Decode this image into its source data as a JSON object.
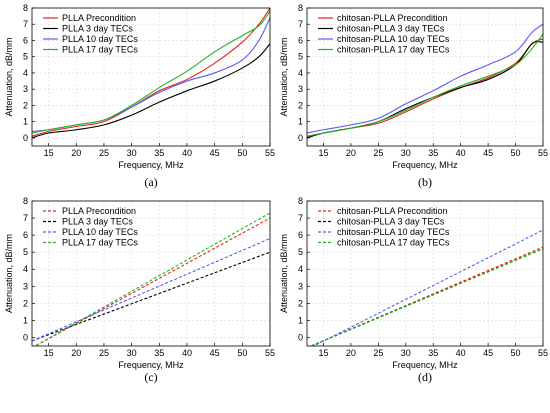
{
  "chart_data": [
    {
      "type": "line",
      "panel_label": "(a)",
      "xlabel": "Frequency, MHz",
      "ylabel": "Attenuation, dB/mm",
      "xlim": [
        12,
        55
      ],
      "ylim": [
        -0.5,
        8
      ],
      "x_ticks": [
        15,
        20,
        25,
        30,
        35,
        40,
        45,
        50,
        55
      ],
      "y_ticks": [
        0,
        1,
        2,
        3,
        4,
        5,
        6,
        7,
        8
      ],
      "grid": true,
      "legend": "top-left",
      "series": [
        {
          "name": "PLLA Precondition",
          "color": "#e8201e",
          "dash": false,
          "x": [
            12,
            15,
            20,
            25,
            30,
            35,
            40,
            45,
            50,
            53,
            55
          ],
          "y": [
            0.1,
            0.4,
            0.7,
            1.0,
            1.9,
            2.9,
            3.6,
            4.6,
            5.9,
            7.0,
            8.0
          ]
        },
        {
          "name": "PLLA 3 day TECs",
          "color": "#000000",
          "dash": false,
          "x": [
            12,
            15,
            20,
            25,
            30,
            35,
            40,
            45,
            50,
            53,
            55
          ],
          "y": [
            0.0,
            0.3,
            0.5,
            0.8,
            1.4,
            2.2,
            2.9,
            3.5,
            4.3,
            5.0,
            5.8
          ]
        },
        {
          "name": "PLLA 10 day TECs",
          "color": "#5b5bf5",
          "dash": false,
          "x": [
            12,
            15,
            20,
            25,
            30,
            35,
            40,
            45,
            50,
            53,
            55
          ],
          "y": [
            0.4,
            0.5,
            0.8,
            1.1,
            1.9,
            2.8,
            3.5,
            4.0,
            4.8,
            6.0,
            7.4
          ]
        },
        {
          "name": "PLLA 17 day TECs",
          "color": "#1eb81e",
          "dash": false,
          "x": [
            12,
            15,
            20,
            25,
            30,
            35,
            40,
            45,
            50,
            53,
            55
          ],
          "y": [
            0.3,
            0.5,
            0.8,
            1.1,
            2.0,
            3.1,
            4.1,
            5.3,
            6.3,
            6.9,
            7.8
          ]
        }
      ]
    },
    {
      "type": "line",
      "panel_label": "(b)",
      "xlabel": "Frequency, MHz",
      "ylabel": "Attenuation, dB/mm",
      "xlim": [
        12,
        55
      ],
      "ylim": [
        -0.5,
        8
      ],
      "x_ticks": [
        15,
        20,
        25,
        30,
        35,
        40,
        45,
        50,
        55
      ],
      "y_ticks": [
        0,
        1,
        2,
        3,
        4,
        5,
        6,
        7,
        8
      ],
      "grid": true,
      "legend": "top-left",
      "series": [
        {
          "name": "chitosan-PLLA Precondition",
          "color": "#e8201e",
          "dash": false,
          "x": [
            12,
            15,
            20,
            25,
            30,
            35,
            40,
            45,
            50,
            53,
            55
          ],
          "y": [
            0.1,
            0.3,
            0.6,
            0.9,
            1.6,
            2.4,
            3.1,
            3.7,
            4.6,
            5.8,
            6.1
          ]
        },
        {
          "name": "chitosan-PLLA 3 day TECs",
          "color": "#000000",
          "dash": false,
          "x": [
            12,
            15,
            20,
            25,
            30,
            35,
            40,
            45,
            50,
            53,
            55
          ],
          "y": [
            0.0,
            0.3,
            0.6,
            1.0,
            1.8,
            2.5,
            3.1,
            3.6,
            4.5,
            5.8,
            5.9
          ]
        },
        {
          "name": "chitosan-PLLA 10 day TECs",
          "color": "#5b5bf5",
          "dash": false,
          "x": [
            12,
            15,
            20,
            25,
            30,
            35,
            40,
            45,
            50,
            53,
            55
          ],
          "y": [
            0.3,
            0.5,
            0.8,
            1.2,
            2.1,
            2.9,
            3.8,
            4.5,
            5.3,
            6.5,
            7.0
          ]
        },
        {
          "name": "chitosan-PLLA 17 day TECs",
          "color": "#1eb81e",
          "dash": false,
          "x": [
            12,
            15,
            20,
            25,
            30,
            35,
            40,
            45,
            50,
            53,
            55
          ],
          "y": [
            0.1,
            0.3,
            0.6,
            1.0,
            1.7,
            2.5,
            3.2,
            3.8,
            4.5,
            5.5,
            6.4
          ]
        }
      ]
    },
    {
      "type": "line",
      "panel_label": "(c)",
      "xlabel": "Frequency, MHz",
      "ylabel": "Attenuation, dB/mm",
      "xlim": [
        12,
        55
      ],
      "ylim": [
        -0.5,
        8
      ],
      "x_ticks": [
        15,
        20,
        25,
        30,
        35,
        40,
        45,
        50,
        55
      ],
      "y_ticks": [
        0,
        1,
        2,
        3,
        4,
        5,
        6,
        7,
        8
      ],
      "grid": true,
      "legend": "top-left",
      "series": [
        {
          "name": "PLLA Precondition",
          "color": "#e8201e",
          "dash": true,
          "x": [
            12,
            55
          ],
          "y": [
            -0.6,
            7.0
          ]
        },
        {
          "name": "PLLA 3 day TECs",
          "color": "#000000",
          "dash": true,
          "x": [
            12,
            55
          ],
          "y": [
            -0.2,
            5.0
          ]
        },
        {
          "name": "PLLA 10 day TECs",
          "color": "#5b5bf5",
          "dash": true,
          "x": [
            12,
            55
          ],
          "y": [
            -0.2,
            5.8
          ]
        },
        {
          "name": "PLLA 17 day TECs",
          "color": "#1eb81e",
          "dash": true,
          "x": [
            12,
            55
          ],
          "y": [
            -0.6,
            7.3
          ]
        }
      ]
    },
    {
      "type": "line",
      "panel_label": "(d)",
      "xlabel": "Frequency, MHz",
      "ylabel": "Attenuation, dB/mm",
      "xlim": [
        12,
        55
      ],
      "ylim": [
        -0.5,
        8
      ],
      "x_ticks": [
        15,
        20,
        25,
        30,
        35,
        40,
        45,
        50,
        55
      ],
      "y_ticks": [
        0,
        1,
        2,
        3,
        4,
        5,
        6,
        7,
        8
      ],
      "grid": true,
      "legend": "top-left",
      "series": [
        {
          "name": "chitosan-PLLA Precondition",
          "color": "#e8201e",
          "dash": true,
          "x": [
            12,
            55
          ],
          "y": [
            -0.6,
            5.3
          ]
        },
        {
          "name": "chitosan-PLLA 3 day TECs",
          "color": "#000000",
          "dash": true,
          "x": [
            12,
            55
          ],
          "y": [
            -0.6,
            5.2
          ]
        },
        {
          "name": "chitosan-PLLA 10 day TECs",
          "color": "#5b5bf5",
          "dash": true,
          "x": [
            12,
            55
          ],
          "y": [
            -0.7,
            6.3
          ]
        },
        {
          "name": "chitosan-PLLA 17 day TECs",
          "color": "#1eb81e",
          "dash": true,
          "x": [
            12,
            55
          ],
          "y": [
            -0.6,
            5.2
          ]
        }
      ]
    }
  ]
}
